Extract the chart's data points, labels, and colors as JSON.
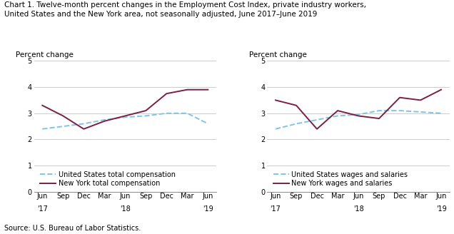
{
  "title_line1": "Chart 1. Twelve-month percent changes in the Employment Cost Index, private industry workers,",
  "title_line2": "United States and the New York area, not seasonally adjusted, June 2017–June 2019",
  "source": "Source: U.S. Bureau of Labor Statistics.",
  "ylabel": "Percent change",
  "x_labels": [
    "Jun",
    "Sep",
    "Dec",
    "Mar",
    "Jun",
    "Sep",
    "Dec",
    "Mar",
    "Jun"
  ],
  "x_year_labels": {
    "0": "'17",
    "4": "'18",
    "8": "'19"
  },
  "ylim": [
    0.0,
    5.0
  ],
  "yticks": [
    0.0,
    1.0,
    2.0,
    3.0,
    4.0,
    5.0
  ],
  "chart1": {
    "us_vals": [
      2.4,
      2.5,
      2.6,
      2.75,
      2.85,
      2.9,
      3.0,
      3.0,
      2.6
    ],
    "ny_vals": [
      3.3,
      2.9,
      2.4,
      2.7,
      2.9,
      3.1,
      3.75,
      3.9,
      3.9
    ],
    "legend1": "United States total compensation",
    "legend2": "New York total compensation"
  },
  "chart2": {
    "us_vals": [
      2.4,
      2.6,
      2.75,
      2.9,
      2.95,
      3.1,
      3.1,
      3.05,
      3.0
    ],
    "ny_vals": [
      3.5,
      3.3,
      2.4,
      3.1,
      2.9,
      2.8,
      3.6,
      3.5,
      3.9
    ],
    "legend1": "United States wages and salaries",
    "legend2": "New York wages and salaries"
  },
  "us_color": "#82C4E6",
  "ny_color": "#7B1F45",
  "us_linestyle": "--",
  "ny_linestyle": "-",
  "linewidth": 1.4,
  "title_fontsize": 7.5,
  "ylabel_fontsize": 7.5,
  "tick_fontsize": 7.0,
  "legend_fontsize": 7.0,
  "source_fontsize": 7.0
}
